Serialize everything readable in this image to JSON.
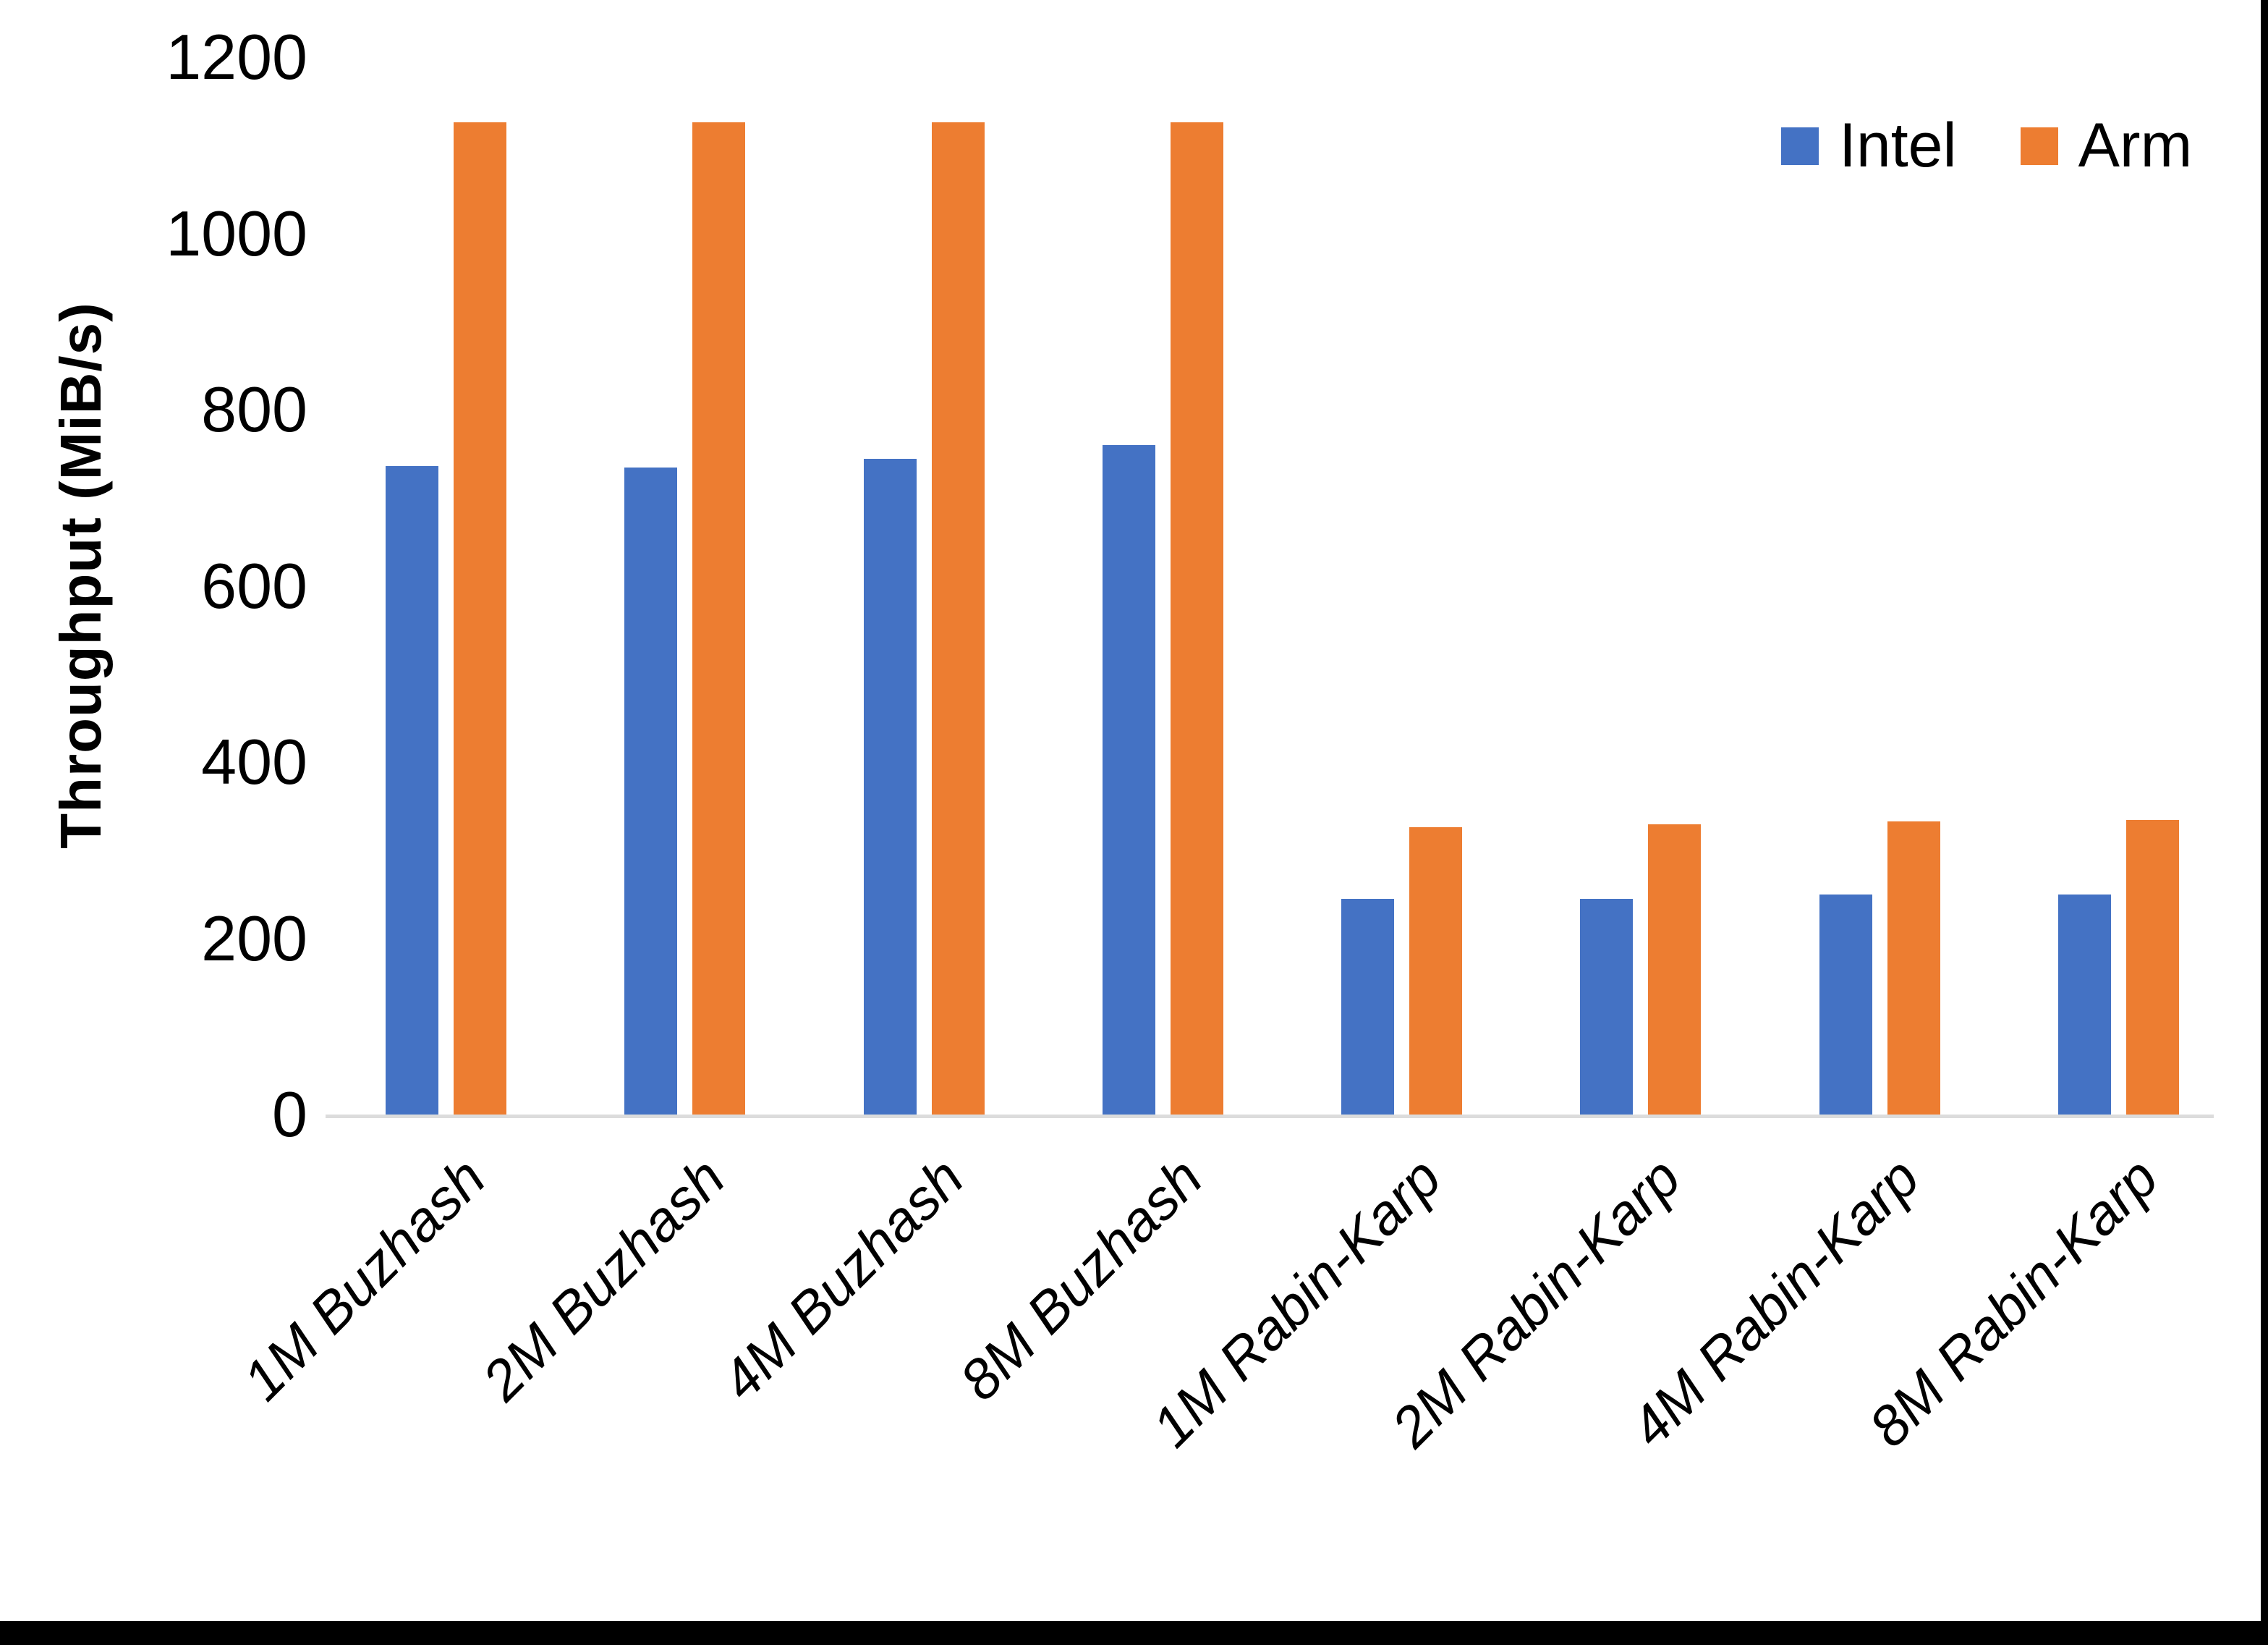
{
  "chart_data": {
    "type": "bar",
    "title": "",
    "ylabel": "Throughput (MiB/s)",
    "xlabel": "",
    "ylim": [
      0,
      1200
    ],
    "yticks": [
      0,
      200,
      400,
      600,
      800,
      1000,
      1200
    ],
    "grid": false,
    "legend_position": "top-right",
    "categories": [
      "1M Buzhash",
      "2M Buzhash",
      "4M Buzhash",
      "8M Buzhash",
      "1M Rabin-Karp",
      "2M Rabin-Karp",
      "4M Rabin-Karp",
      "8M Rabin-Karp"
    ],
    "series": [
      {
        "name": "Intel",
        "color": "#4472C4",
        "values": [
          736,
          734,
          744,
          760,
          245,
          245,
          250,
          250
        ]
      },
      {
        "name": "Arm",
        "color": "#ED7D31",
        "values": [
          1126,
          1126,
          1126,
          1126,
          326,
          329,
          333,
          334
        ]
      }
    ]
  },
  "colors": {
    "intel": "#4472C4",
    "arm": "#ED7D31",
    "axis_line": "#DCDCDC",
    "text": "#000000",
    "edge_strips": "#000000",
    "background": "#FFFFFF"
  }
}
